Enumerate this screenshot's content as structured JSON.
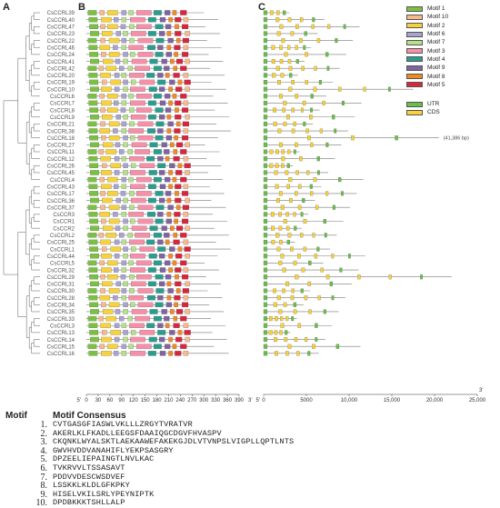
{
  "panels": {
    "a": "A",
    "b": "B",
    "c": "C"
  },
  "genes": [
    "CsCCRL39",
    "CsCCRL40",
    "CsCCRL47",
    "CsCCRL23",
    "CsCCRL22",
    "CsCCRL46",
    "CsCCRL24",
    "CsCCRL41",
    "CsCCRL42",
    "CsCCRL20",
    "CsCCRL19",
    "CsCCRL10",
    "CsCCRL6",
    "CsCCRL7",
    "CsCCRL8",
    "CsCCRL9",
    "CsCCRL21",
    "CsCCRL38",
    "CsCCRL18",
    "CsCCRL27",
    "CsCCRL11",
    "CsCCRL12",
    "CsCCRL26",
    "CsCCRL45",
    "CsCCRL4",
    "CsCCRL43",
    "CsCCRL17",
    "CsCCRL36",
    "CsCCRL37",
    "CsCCR3",
    "CsCCR1",
    "CsCCR2",
    "CsCCRL2",
    "CsCCRL25",
    "CsCCRL1",
    "CsCCRL44",
    "CsCCRL5",
    "CsCCRL32",
    "CsCCRL29",
    "CsCCRL31",
    "CsCCRL30",
    "CsCCRL28",
    "CsCCRL34",
    "CsCCRL35",
    "CsCCRL33",
    "CsCCRL3",
    "CsCCRL13",
    "CsCCRL14",
    "CsCCRL15",
    "CsCCRL16"
  ],
  "axis_b": {
    "ticks": [
      "0",
      "30",
      "60",
      "90",
      "120",
      "150",
      "180",
      "210",
      "240",
      "270",
      "300",
      "330",
      "360",
      "390"
    ],
    "end5": "5'",
    "end3": "3'"
  },
  "axis_c": {
    "ticks": [
      "0",
      "5000",
      "10,000",
      "15,000",
      "20,000",
      "25,000"
    ],
    "end5": "5'",
    "end3": "3'"
  },
  "long_gene_note": "(41,386 bp)",
  "legend": {
    "motifs": [
      {
        "label": "Motif 1",
        "color": "#7cc043"
      },
      {
        "label": "Motif 10",
        "color": "#f9b98f"
      },
      {
        "label": "Motif 2",
        "color": "#f7d23e"
      },
      {
        "label": "Motif 6",
        "color": "#a9a3cf"
      },
      {
        "label": "Motif 7",
        "color": "#b6e08a"
      },
      {
        "label": "Motif 3",
        "color": "#f590a8"
      },
      {
        "label": "Motif 4",
        "color": "#2a9d8f"
      },
      {
        "label": "Motif 9",
        "color": "#8064a2"
      },
      {
        "label": "Motif 8",
        "color": "#f08a24"
      },
      {
        "label": "Motif 5",
        "color": "#d7263d"
      }
    ],
    "structure": [
      {
        "label": "UTR",
        "color": "#6abf4b"
      },
      {
        "label": "CDS",
        "color": "#f7d23e"
      }
    ]
  },
  "motif_table": {
    "header_motif": "Motif",
    "header_consensus": "Motif Consensus",
    "rows": [
      {
        "num": "1.",
        "seq": "CVTGASGFIASWLVKLLLZRGYTVRATVR"
      },
      {
        "num": "2.",
        "seq": "AKERLKLFKADLLEEGSFDAAIQGCDGVFHVASPV"
      },
      {
        "num": "3.",
        "seq": "CKQNKLWYALSKTLAEKAAWEFAKEKGJDLVTVNPSLVIGPLLQPTLNTS"
      },
      {
        "num": "4.",
        "seq": "GWVHVDDVANAHIFLYEKPSASGRY"
      },
      {
        "num": "5.",
        "seq": "DPZEELIEPAINGTLNVLKAC"
      },
      {
        "num": "6.",
        "seq": "TVKRVVLTSSASAVT"
      },
      {
        "num": "7.",
        "seq": "PDDVVDESCWSDVEF"
      },
      {
        "num": "8.",
        "seq": "LSSKKLKLDLGFKPKY"
      },
      {
        "num": "9.",
        "seq": "HISELVKILSRLYPEYNIPTK"
      },
      {
        "num": "10.",
        "seq": "DPDBKKKTSHLLALP"
      }
    ]
  }
}
